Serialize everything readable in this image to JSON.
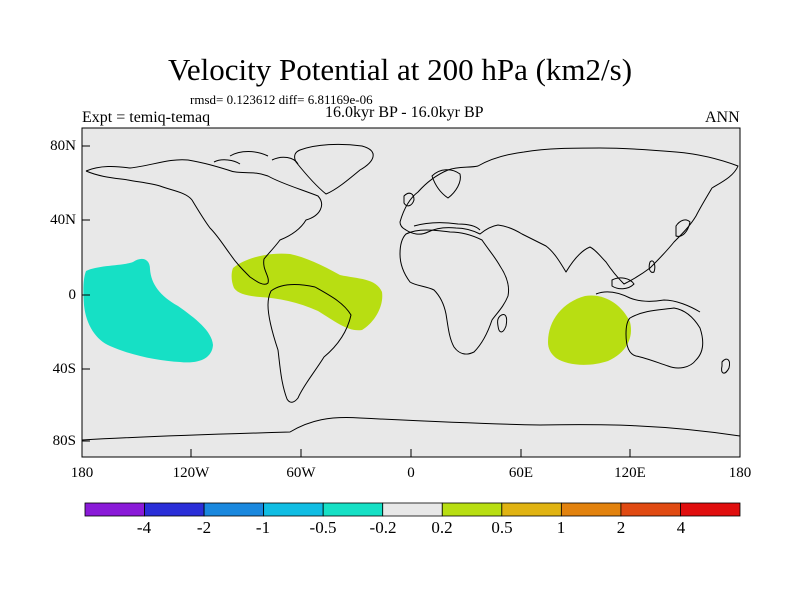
{
  "title": "Velocity Potential at 200 hPa (km2/s)",
  "stats_text": "rmsd= 0.123612 diff= 6.81169e-06",
  "experiment_label": "Expt = temiq-temaq",
  "period_label": "16.0kyr BP - 16.0kyr BP",
  "season_label": "ANN",
  "lat_ticks": [
    "80N",
    "40N",
    "0",
    "40S",
    "80S"
  ],
  "lon_ticks": [
    "180",
    "120W",
    "60W",
    "0",
    "60E",
    "120E",
    "180"
  ],
  "colorbar": {
    "colors": [
      "#8a1ad8",
      "#2a2ed8",
      "#1a88de",
      "#10bde3",
      "#16e0c5",
      "#e8e8e8",
      "#b8de12",
      "#e0b312",
      "#e2820e",
      "#e04a12",
      "#e00e0e"
    ],
    "labels": [
      "-4",
      "-2",
      "-1",
      "-0.5",
      "-0.2",
      "0.2",
      "0.5",
      "1",
      "2",
      "4"
    ]
  },
  "map": {
    "background": "#e8e8e8",
    "coastline": "#000000"
  },
  "anomalies": [
    {
      "name": "central-pacific-negative",
      "level": "-0.5 to -0.2",
      "color": "#16e0c5"
    },
    {
      "name": "tropical-atlantic-positive",
      "level": "0.2 to 0.5",
      "color": "#b8de12"
    },
    {
      "name": "indian-ocean-positive",
      "level": "0.2 to 0.5",
      "color": "#b8de12"
    }
  ]
}
